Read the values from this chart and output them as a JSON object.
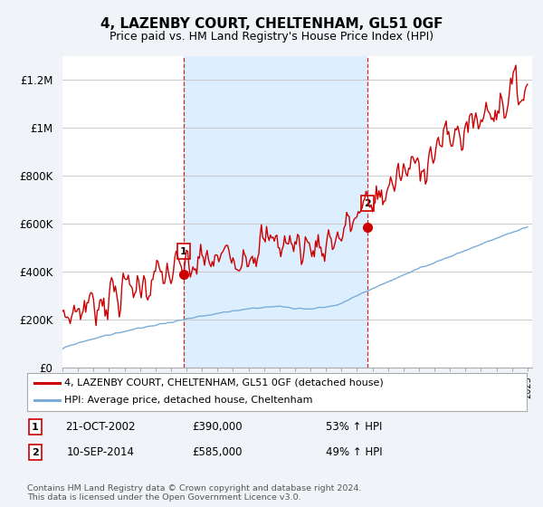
{
  "title": "4, LAZENBY COURT, CHELTENHAM, GL51 0GF",
  "subtitle": "Price paid vs. HM Land Registry's House Price Index (HPI)",
  "background_color": "#f0f4f8",
  "plot_bg_color": "#ffffff",
  "shaded_color": "#ddeeff",
  "ylim": [
    0,
    1300000
  ],
  "yticks": [
    0,
    200000,
    400000,
    600000,
    800000,
    1000000,
    1200000
  ],
  "ytick_labels": [
    "£0",
    "£200K",
    "£400K",
    "£600K",
    "£800K",
    "£1M",
    "£1.2M"
  ],
  "year_start": 1995,
  "year_end": 2025,
  "sale1_year": 2002.8,
  "sale1_price": 390000,
  "sale1_label": "1",
  "sale2_year": 2014.7,
  "sale2_price": 585000,
  "sale2_label": "2",
  "legend_line1": "4, LAZENBY COURT, CHELTENHAM, GL51 0GF (detached house)",
  "legend_line2": "HPI: Average price, detached house, Cheltenham",
  "annotation1_date": "21-OCT-2002",
  "annotation1_price": "£390,000",
  "annotation1_hpi": "53% ↑ HPI",
  "annotation2_date": "10-SEP-2014",
  "annotation2_price": "£585,000",
  "annotation2_hpi": "49% ↑ HPI",
  "footer": "Contains HM Land Registry data © Crown copyright and database right 2024.\nThis data is licensed under the Open Government Licence v3.0.",
  "line_color_red": "#cc0000",
  "line_color_blue": "#7aadda",
  "vline_color": "#cc0000",
  "grid_color": "#cccccc"
}
